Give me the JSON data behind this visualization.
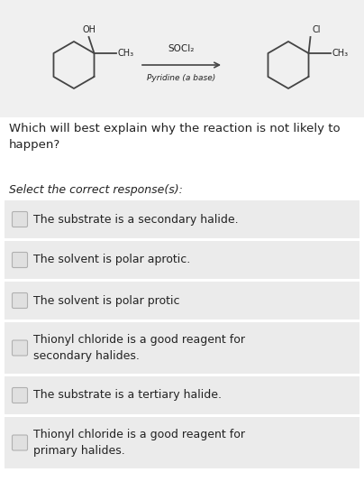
{
  "bg_color": "#ffffff",
  "reaction_bg": "#f0f0f0",
  "text_color": "#222222",
  "question": "Which will best explain why the reaction is not likely to\nhappen?",
  "select_text": "Select the correct response(s):",
  "options": [
    "The substrate is a secondary halide.",
    "The solvent is polar aprotic.",
    "The solvent is polar protic",
    "Thionyl chloride is a good reagent for\nsecondary halides.",
    "The substrate is a tertiary halide.",
    "Thionyl chloride is a good reagent for\nprimary halides."
  ],
  "reagent_line": "SOCl₂",
  "reagent_below": "Pyridine (a base)",
  "figsize": [
    4.04,
    5.44
  ],
  "dpi": 100,
  "box_color": "#ebebeb",
  "checkbox_fill": "#e0e0e0",
  "checkbox_edge": "#b0b0b0"
}
